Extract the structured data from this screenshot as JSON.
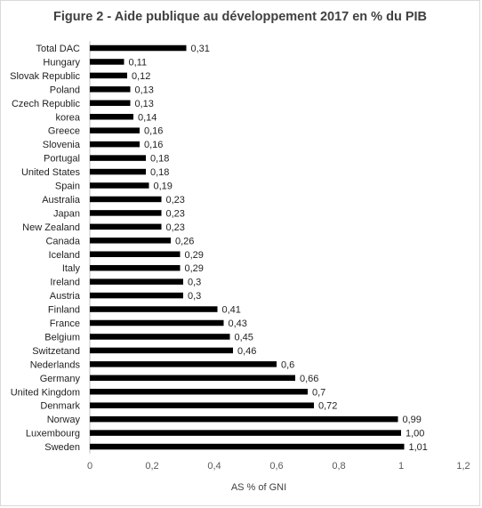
{
  "chart_data": {
    "type": "bar",
    "orientation": "horizontal",
    "title": "Figure 2 - Aide publique au développement 2017 en % du PIB",
    "xlabel": "AS % of GNI",
    "ylabel": "",
    "xlim": [
      0,
      1.2
    ],
    "xticks": [
      "0",
      "0,2",
      "0,4",
      "0,6",
      "0,8",
      "1",
      "1,2"
    ],
    "xtick_values": [
      0,
      0.2,
      0.4,
      0.6,
      0.8,
      1.0,
      1.2
    ],
    "grid": false,
    "legend": "none",
    "bar_color": "#000000",
    "categories": [
      "Total DAC",
      "Hungary",
      "Slovak Republic",
      "Poland",
      "Czech Republic",
      "korea",
      "Greece",
      "Slovenia",
      "Portugal",
      "United States",
      "Spain",
      "Australia",
      "Japan",
      "New Zealand",
      "Canada",
      "Iceland",
      "Italy",
      "Ireland",
      "Austria",
      "Finland",
      "France",
      "Belgium",
      "Switzetand",
      "Nederlands",
      "Germany",
      "United Kingdom",
      "Denmark",
      "Norway",
      "Luxembourg",
      "Sweden"
    ],
    "values": [
      0.31,
      0.11,
      0.12,
      0.13,
      0.13,
      0.14,
      0.16,
      0.16,
      0.18,
      0.18,
      0.19,
      0.23,
      0.23,
      0.23,
      0.26,
      0.29,
      0.29,
      0.3,
      0.3,
      0.41,
      0.43,
      0.45,
      0.46,
      0.6,
      0.66,
      0.7,
      0.72,
      0.99,
      1.0,
      1.01
    ],
    "value_labels": [
      "0,31",
      "0,11",
      "0,12",
      "0,13",
      "0,13",
      "0,14",
      "0,16",
      "0,16",
      "0,18",
      "0,18",
      "0,19",
      "0,23",
      "0,23",
      "0,23",
      "0,26",
      "0,29",
      "0,29",
      "0,3",
      "0,3",
      "0,41",
      "0,43",
      "0,45",
      "0,46",
      "0,6",
      "0,66",
      "0,7",
      "0,72",
      "0,99",
      "1,00",
      "1,01"
    ]
  }
}
